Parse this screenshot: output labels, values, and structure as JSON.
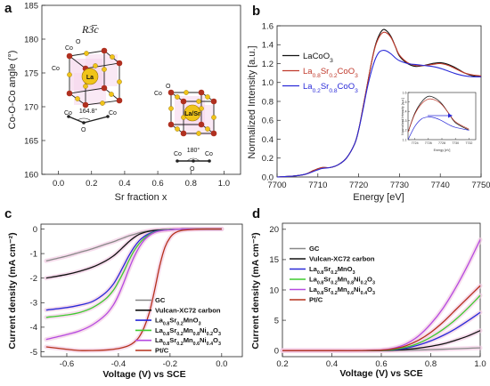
{
  "panels": {
    "a": {
      "label": "a",
      "symmetry": "R3̅c"
    },
    "b": {
      "label": "b"
    },
    "c": {
      "label": "c"
    },
    "d": {
      "label": "d"
    }
  },
  "colors": {
    "black": "#111111",
    "red": "#c0392b",
    "blue": "#2a2ad8",
    "gray": "#888888",
    "green": "#3ecb2e",
    "violet": "#b54ae0",
    "brown": "#b5301b",
    "pink_band": "#f3cbe4",
    "atom_gold": "#f0c419",
    "atom_red": "#b03020"
  },
  "chart_data": [
    {
      "panel": "a",
      "type": "scatter",
      "xlabel": "Sr fraction x",
      "ylabel": "Co-O-Co angle (°)",
      "xlim": [
        -0.1,
        1.1
      ],
      "ylim": [
        160,
        185
      ],
      "xticks": [
        "0.0",
        "0.2",
        "0.4",
        "0.6",
        "0.8",
        "1.0"
      ],
      "xtick_values": [
        0,
        0.2,
        0.4,
        0.6,
        0.8,
        1.0
      ],
      "yticks": [
        "160",
        "165",
        "170",
        "175",
        "180",
        "185"
      ],
      "ytick_values": [
        160,
        165,
        170,
        175,
        180,
        185
      ],
      "insets": [
        {
          "site_label": "La",
          "angle_label": "164.8°",
          "atom_labels": [
            "Co",
            "Co",
            "O",
            "Co",
            "O",
            "Co"
          ]
        },
        {
          "site_label": "La/Sr",
          "angle_label": "180°",
          "atom_labels": [
            "Co",
            "O",
            "Co",
            "O",
            "Co"
          ]
        }
      ]
    },
    {
      "panel": "b",
      "type": "line",
      "xlabel": "Energy [eV]",
      "ylabel": "Normalized Intensity [a.u.]",
      "xlim": [
        7700,
        7750
      ],
      "ylim": [
        0,
        1.6
      ],
      "xticks": [
        "7700",
        "7710",
        "7720",
        "7730",
        "7740",
        "7750"
      ],
      "xtick_values": [
        7700,
        7710,
        7720,
        7730,
        7740,
        7750
      ],
      "yticks": [
        "0.0",
        "0.2",
        "0.4",
        "0.6",
        "0.8",
        "1.0",
        "1.2",
        "1.4",
        "1.6"
      ],
      "ytick_values": [
        0,
        0.2,
        0.4,
        0.6,
        0.8,
        1.0,
        1.2,
        1.4,
        1.6
      ],
      "x": [
        7700,
        7704,
        7707,
        7709,
        7711,
        7713,
        7715,
        7717,
        7719,
        7720,
        7721,
        7722,
        7723,
        7724,
        7725,
        7726,
        7727,
        7728,
        7729,
        7730,
        7732,
        7734,
        7736,
        7738,
        7740,
        7742,
        7744,
        7746,
        7748,
        7750
      ],
      "series": [
        {
          "name": "LaCoO",
          "sub": "3",
          "color": "#111111",
          "values": [
            0.0,
            0.01,
            0.03,
            0.07,
            0.1,
            0.1,
            0.13,
            0.2,
            0.35,
            0.5,
            0.72,
            0.95,
            1.18,
            1.38,
            1.5,
            1.56,
            1.54,
            1.48,
            1.38,
            1.28,
            1.2,
            1.17,
            1.18,
            1.2,
            1.21,
            1.19,
            1.15,
            1.1,
            1.07,
            1.06
          ]
        },
        {
          "name": "La",
          "sub_parts": [
            "0.8",
            "Sr",
            "0.2",
            "CoO",
            "3"
          ],
          "color": "#c0392b",
          "values": [
            0.0,
            0.01,
            0.03,
            0.07,
            0.1,
            0.1,
            0.13,
            0.2,
            0.35,
            0.5,
            0.72,
            0.95,
            1.18,
            1.37,
            1.48,
            1.53,
            1.52,
            1.47,
            1.38,
            1.29,
            1.21,
            1.18,
            1.18,
            1.19,
            1.2,
            1.18,
            1.14,
            1.1,
            1.08,
            1.07
          ]
        },
        {
          "name": "La",
          "sub_parts": [
            "0.2",
            "Sr",
            "0.8",
            "CoO",
            "3"
          ],
          "color": "#2a2ad8",
          "values": [
            0.0,
            0.01,
            0.03,
            0.06,
            0.09,
            0.1,
            0.13,
            0.2,
            0.35,
            0.5,
            0.7,
            0.92,
            1.1,
            1.24,
            1.32,
            1.34,
            1.33,
            1.3,
            1.26,
            1.23,
            1.2,
            1.19,
            1.18,
            1.17,
            1.15,
            1.12,
            1.09,
            1.07,
            1.06,
            1.06
          ]
        }
      ],
      "inset": {
        "xlabel": "Energy [eV]",
        "ylabel": "Normalized Intensity [a.u.]",
        "xticks": [
          "7724",
          "7726",
          "7728",
          "7730",
          "7732"
        ],
        "xtick_values": [
          7724,
          7726,
          7728,
          7730,
          7732
        ],
        "yticks": [
          "1.1",
          "1.2",
          "1.3",
          "1.4",
          "1.5",
          "1.6"
        ],
        "ytick_values": [
          1.1,
          1.2,
          1.3,
          1.4,
          1.5,
          1.6
        ],
        "xlim": [
          7723,
          7733
        ],
        "ylim": [
          1.1,
          1.6
        ]
      }
    },
    {
      "panel": "c",
      "type": "line",
      "xlabel": "Voltage (V) vs SCE",
      "ylabel": "Current density (mA cm⁻²)",
      "xlim": [
        -0.7,
        0.08
      ],
      "ylim": [
        -5.2,
        0.2
      ],
      "xticks": [
        "-0.6",
        "-0.4",
        "-0.2",
        "0.0"
      ],
      "xtick_values": [
        -0.6,
        -0.4,
        -0.2,
        0.0
      ],
      "yticks": [
        "-5",
        "-4",
        "-3",
        "-2",
        "-1",
        "0"
      ],
      "ytick_values": [
        -5,
        -4,
        -3,
        -2,
        -1,
        0
      ],
      "x": [
        -0.68,
        -0.6,
        -0.55,
        -0.5,
        -0.45,
        -0.42,
        -0.4,
        -0.38,
        -0.36,
        -0.34,
        -0.32,
        -0.3,
        -0.28,
        -0.26,
        -0.24,
        -0.22,
        -0.2,
        -0.18,
        -0.15,
        -0.1,
        -0.05,
        0.0
      ],
      "series": [
        {
          "name": "GC",
          "color": "#888888",
          "values": [
            -1.3,
            -1.1,
            -0.95,
            -0.8,
            -0.62,
            -0.52,
            -0.44,
            -0.36,
            -0.28,
            -0.22,
            -0.16,
            -0.11,
            -0.07,
            -0.04,
            -0.03,
            -0.02,
            -0.01,
            -0.01,
            0.0,
            0.0,
            0.0,
            0.0
          ]
        },
        {
          "name": "Vulcan-XC72 carbon",
          "color": "#111111",
          "values": [
            -2.0,
            -1.85,
            -1.72,
            -1.55,
            -1.3,
            -1.1,
            -0.92,
            -0.72,
            -0.52,
            -0.35,
            -0.22,
            -0.14,
            -0.09,
            -0.06,
            -0.04,
            -0.03,
            -0.02,
            -0.01,
            0.0,
            0.0,
            0.0,
            0.0
          ]
        },
        {
          "name": "La",
          "sub_parts": [
            "0.8",
            "Sr",
            "0.2",
            "MnO",
            "3"
          ],
          "color": "#2a2ad8",
          "values": [
            -3.3,
            -3.2,
            -3.1,
            -2.95,
            -2.6,
            -2.25,
            -1.9,
            -1.5,
            -1.1,
            -0.75,
            -0.48,
            -0.3,
            -0.18,
            -0.1,
            -0.06,
            -0.04,
            -0.02,
            -0.01,
            0.0,
            0.0,
            0.0,
            0.0
          ]
        },
        {
          "name": "La",
          "sub_parts": [
            "0.8",
            "Sr",
            "0.2",
            "Mn",
            "0.8",
            "Ni",
            "0.2",
            "O",
            "3"
          ],
          "color": "#3ecb2e",
          "values": [
            -3.6,
            -3.5,
            -3.4,
            -3.2,
            -2.85,
            -2.5,
            -2.15,
            -1.75,
            -1.3,
            -0.9,
            -0.6,
            -0.38,
            -0.22,
            -0.12,
            -0.07,
            -0.04,
            -0.02,
            -0.01,
            0.0,
            0.0,
            0.0,
            0.0
          ]
        },
        {
          "name": "La",
          "sub_parts": [
            "0.8",
            "Sr",
            "0.2",
            "Mn",
            "0.6",
            "Ni",
            "0.4",
            "O",
            "3"
          ],
          "color": "#b54ae0",
          "values": [
            -4.5,
            -4.3,
            -4.15,
            -3.9,
            -3.5,
            -3.1,
            -2.7,
            -2.2,
            -1.65,
            -1.15,
            -0.75,
            -0.45,
            -0.26,
            -0.14,
            -0.08,
            -0.05,
            -0.03,
            -0.01,
            0.0,
            0.0,
            0.0,
            0.0
          ]
        },
        {
          "name": "Pt/C",
          "color": "#b5301b",
          "values": [
            -4.8,
            -4.9,
            -4.95,
            -4.95,
            -4.93,
            -4.9,
            -4.87,
            -4.82,
            -4.75,
            -4.62,
            -4.4,
            -4.0,
            -3.4,
            -2.5,
            -1.5,
            -0.75,
            -0.35,
            -0.15,
            -0.05,
            -0.01,
            0.0,
            0.0
          ]
        }
      ]
    },
    {
      "panel": "d",
      "type": "line",
      "xlabel": "Voltage (V) vs SCE",
      "ylabel": "Current density (mA cm⁻²)",
      "xlim": [
        0.2,
        1.0
      ],
      "ylim": [
        -1,
        21
      ],
      "xticks": [
        "0.2",
        "0.4",
        "0.6",
        "0.8",
        "1.0"
      ],
      "xtick_values": [
        0.2,
        0.4,
        0.6,
        0.8,
        1.0
      ],
      "yticks": [
        "0",
        "5",
        "10",
        "15",
        "20"
      ],
      "ytick_values": [
        0,
        5,
        10,
        15,
        20
      ],
      "x": [
        0.2,
        0.3,
        0.4,
        0.5,
        0.6,
        0.65,
        0.7,
        0.75,
        0.8,
        0.85,
        0.9,
        0.95,
        1.0
      ],
      "series": [
        {
          "name": "GC",
          "color": "#888888",
          "values": [
            0,
            0,
            0,
            0,
            0,
            0.02,
            0.05,
            0.1,
            0.15,
            0.22,
            0.3,
            0.38,
            0.45
          ]
        },
        {
          "name": "Vulcan-XC72 carbon",
          "color": "#111111",
          "values": [
            0,
            0,
            0,
            0,
            0.02,
            0.08,
            0.2,
            0.4,
            0.7,
            1.1,
            1.7,
            2.4,
            3.3
          ]
        },
        {
          "name": "La",
          "sub_parts": [
            "0.8",
            "Sr",
            "0.2",
            "MnO",
            "3"
          ],
          "color": "#2a2ad8",
          "values": [
            0,
            0,
            0,
            0,
            0.05,
            0.15,
            0.4,
            0.9,
            1.6,
            2.5,
            3.6,
            4.9,
            6.3
          ]
        },
        {
          "name": "La",
          "sub_parts": [
            "0.8",
            "Sr",
            "0.2",
            "Mn",
            "0.8",
            "Ni",
            "0.2",
            "O",
            "3"
          ],
          "color": "#3ecb2e",
          "values": [
            0,
            0,
            0,
            0,
            0.05,
            0.2,
            0.55,
            1.2,
            2.2,
            3.5,
            5.1,
            7.0,
            9.1
          ]
        },
        {
          "name": "La",
          "sub_parts": [
            "0.8",
            "Sr",
            "0.2",
            "Mn",
            "0.6",
            "Ni",
            "0.4",
            "O",
            "3"
          ],
          "color": "#b54ae0",
          "values": [
            0,
            0,
            0,
            0,
            0.1,
            0.4,
            1.1,
            2.4,
            4.4,
            7.0,
            10.3,
            14.1,
            18.3
          ]
        },
        {
          "name": "Pt/C",
          "color": "#b5301b",
          "values": [
            0,
            0,
            0,
            0,
            0.08,
            0.3,
            0.8,
            1.7,
            3.0,
            4.7,
            6.7,
            8.7,
            10.7
          ]
        }
      ]
    }
  ]
}
